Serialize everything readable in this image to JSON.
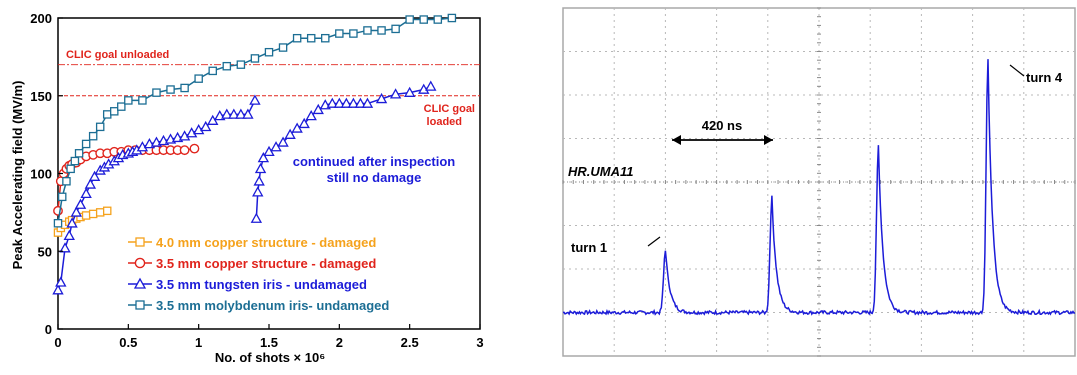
{
  "chart_data": [
    {
      "type": "line",
      "xlabel": "No. of shots × 10⁶",
      "ylabel": "Peak Accelerating field (MV/m)",
      "xlim": [
        0,
        3
      ],
      "ylim": [
        0,
        200
      ],
      "x_ticks": [
        "0",
        "0.5",
        "1",
        "1.5",
        "2",
        "2.5",
        "3"
      ],
      "y_ticks": [
        "0",
        "50",
        "100",
        "150",
        "200"
      ],
      "grid": false,
      "legend_position": "bottom-left",
      "reference_lines": [
        {
          "label": "CLIC goal unloaded",
          "y": 170,
          "color": "#e0241c"
        },
        {
          "label": "CLIC goal",
          "label2": "loaded",
          "y": 150,
          "color": "#e0241c"
        }
      ],
      "annotations": [
        {
          "text": "continued after inspection",
          "color": "#1c1cd8"
        },
        {
          "text": "still no damage",
          "color": "#1c1cd8"
        }
      ],
      "series": [
        {
          "name": "4.0 mm copper structure - damaged",
          "color": "#f5a21c",
          "marker": "square",
          "x": [
            0,
            0.02,
            0.05,
            0.08,
            0.1,
            0.13,
            0.16,
            0.2,
            0.25,
            0.3,
            0.35
          ],
          "y": [
            62,
            65,
            67,
            69,
            70,
            71,
            72,
            73,
            74,
            75,
            76
          ]
        },
        {
          "name": "3.5 mm copper structure - damaged",
          "color": "#e0241c",
          "marker": "circle",
          "x": [
            0,
            0.02,
            0.04,
            0.06,
            0.08,
            0.1,
            0.13,
            0.16,
            0.2,
            0.25,
            0.3,
            0.35,
            0.4,
            0.45,
            0.5,
            0.55,
            0.6,
            0.65,
            0.7,
            0.75,
            0.8,
            0.85,
            0.9,
            0.97
          ],
          "y": [
            76,
            95,
            100,
            103,
            105,
            106,
            107,
            109,
            111,
            112,
            113,
            113,
            114,
            114,
            115,
            115,
            115,
            115,
            115,
            115,
            115,
            115,
            115,
            116
          ]
        },
        {
          "name": "3.5 mm tungsten iris - undamaged",
          "color": "#1c1cd8",
          "marker": "triangle",
          "x": [
            0,
            0.02,
            0.05,
            0.08,
            0.1,
            0.13,
            0.16,
            0.2,
            0.23,
            0.26,
            0.3,
            0.33,
            0.36,
            0.4,
            0.43,
            0.46,
            0.5,
            0.53,
            0.56,
            0.6,
            0.65,
            0.7,
            0.75,
            0.8,
            0.85,
            0.9,
            0.95,
            1.0,
            1.05,
            1.1,
            1.15,
            1.2,
            1.25,
            1.3,
            1.35,
            1.4
          ],
          "y": [
            25,
            30,
            52,
            60,
            68,
            75,
            80,
            87,
            93,
            98,
            102,
            104,
            106,
            108,
            110,
            112,
            113,
            114,
            115,
            117,
            119,
            120,
            121,
            122,
            123,
            124,
            126,
            128,
            130,
            134,
            137,
            138,
            138,
            138,
            138,
            147
          ]
        },
        {
          "name": "continued after inspection",
          "color": "#1c1cd8",
          "marker": "triangle",
          "x": [
            1.41,
            1.42,
            1.43,
            1.44,
            1.46,
            1.5,
            1.55,
            1.6,
            1.65,
            1.7,
            1.75,
            1.8,
            1.85,
            1.9,
            1.95,
            2.0,
            2.05,
            2.1,
            2.15,
            2.2,
            2.3,
            2.4,
            2.5,
            2.6,
            2.65
          ],
          "y": [
            71,
            88,
            95,
            103,
            110,
            114,
            117,
            120,
            125,
            129,
            132,
            137,
            141,
            144,
            145,
            145,
            145,
            145,
            145,
            145,
            148,
            151,
            152,
            154,
            156
          ]
        },
        {
          "name": "3.5 mm molybdenum iris- undamaged",
          "color": "#1c6e94",
          "marker": "square",
          "x": [
            0,
            0.03,
            0.06,
            0.09,
            0.12,
            0.15,
            0.2,
            0.25,
            0.3,
            0.35,
            0.4,
            0.45,
            0.5,
            0.6,
            0.7,
            0.8,
            0.9,
            1.0,
            1.1,
            1.2,
            1.3,
            1.4,
            1.5,
            1.6,
            1.7,
            1.8,
            1.9,
            2.0,
            2.1,
            2.2,
            2.3,
            2.4,
            2.5,
            2.6,
            2.7,
            2.8
          ],
          "y": [
            68,
            85,
            95,
            103,
            108,
            113,
            119,
            124,
            130,
            138,
            140,
            143,
            147,
            147,
            152,
            154,
            155,
            161,
            166,
            169,
            170,
            174,
            178,
            181,
            187,
            187,
            187,
            190,
            190,
            192,
            192,
            193,
            199,
            199,
            199,
            200
          ]
        }
      ]
    },
    {
      "type": "line",
      "signal_label": "HR.UMA11",
      "interval_label": "420 ns",
      "peak_labels": [
        "turn 1",
        "turn 4"
      ],
      "color": "#1c1cd8",
      "grid": true,
      "xlim": [
        0,
        10
      ],
      "ylim": [
        0,
        8
      ],
      "x": [
        0,
        1,
        2,
        3,
        4,
        5,
        6,
        7,
        8,
        9,
        10
      ],
      "baseline": 1.0,
      "peaks": [
        {
          "x": 2.0,
          "y": 2.45
        },
        {
          "x": 4.08,
          "y": 3.65
        },
        {
          "x": 6.16,
          "y": 4.82
        },
        {
          "x": 8.3,
          "y": 6.8
        }
      ]
    }
  ]
}
